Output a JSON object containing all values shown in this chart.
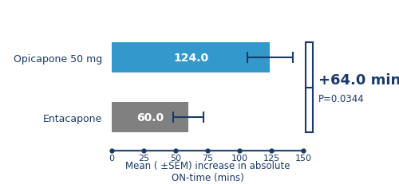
{
  "categories": [
    "Opicapone 50 mg",
    "Entacapone"
  ],
  "values": [
    124.0,
    60.0
  ],
  "errors": [
    18.0,
    12.0
  ],
  "bar_colors": [
    "#3399cc",
    "#808080"
  ],
  "bar_labels": [
    "124.0",
    "60.0"
  ],
  "xlim": [
    0,
    150
  ],
  "xticks": [
    0,
    25,
    50,
    75,
    100,
    125,
    150
  ],
  "xlabel_line1": "Mean ( ±SEM) increase in absolute",
  "xlabel_line2": "ON-time (mins)",
  "diff_text": "+64.0 mins",
  "pval_text": "P=0.0344",
  "annotation_color": "#1a3a6b",
  "bar_label_color": "#ffffff",
  "bar_label_fontsize": 10,
  "xlabel_fontsize": 8.5,
  "ytick_fontsize": 9,
  "xtick_fontsize": 8,
  "diff_fontsize": 13,
  "pval_fontsize": 8.5,
  "background_color": "#ffffff"
}
